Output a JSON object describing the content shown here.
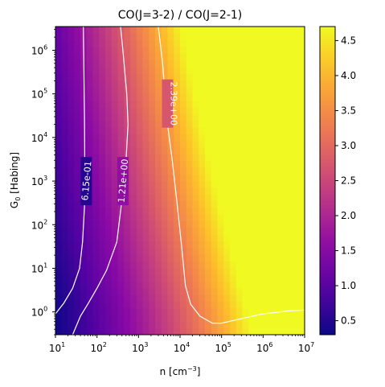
{
  "chart_data": {
    "type": "heatmap",
    "title": "CO(J=3-2) / CO(J=2-1)",
    "xlabel": "n [cm",
    "xlabel_sup": "−3",
    "xlabel_end": "]",
    "ylabel": "G",
    "ylabel_sub": "0",
    "ylabel_end": " [Habing]",
    "x_scale": "log",
    "y_scale": "log",
    "xlim": [
      10,
      10000000
    ],
    "ylim": [
      0.3,
      3500000
    ],
    "colormap": "plasma",
    "color_range": [
      0.3,
      4.7
    ],
    "x_ticks": [
      {
        "value": 10,
        "base": "10",
        "exp": "1"
      },
      {
        "value": 100,
        "base": "10",
        "exp": "2"
      },
      {
        "value": 1000,
        "base": "10",
        "exp": "3"
      },
      {
        "value": 10000,
        "base": "10",
        "exp": "4"
      },
      {
        "value": 100000,
        "base": "10",
        "exp": "5"
      },
      {
        "value": 1000000,
        "base": "10",
        "exp": "6"
      },
      {
        "value": 10000000,
        "base": "10",
        "exp": "7"
      }
    ],
    "y_ticks": [
      {
        "value": 1,
        "base": "10",
        "exp": "0"
      },
      {
        "value": 10,
        "base": "10",
        "exp": "1"
      },
      {
        "value": 100,
        "base": "10",
        "exp": "2"
      },
      {
        "value": 1000,
        "base": "10",
        "exp": "3"
      },
      {
        "value": 10000,
        "base": "10",
        "exp": "4"
      },
      {
        "value": 100000,
        "base": "10",
        "exp": "5"
      },
      {
        "value": 1000000,
        "base": "10",
        "exp": "6"
      }
    ],
    "colorbar_ticks": [
      {
        "value": 0.5,
        "label": "0.5"
      },
      {
        "value": 1.0,
        "label": "1.0"
      },
      {
        "value": 1.5,
        "label": "1.5"
      },
      {
        "value": 2.0,
        "label": "2.0"
      },
      {
        "value": 2.5,
        "label": "2.5"
      },
      {
        "value": 3.0,
        "label": "3.0"
      },
      {
        "value": 3.5,
        "label": "3.5"
      },
      {
        "value": 4.0,
        "label": "4.0"
      },
      {
        "value": 4.5,
        "label": "4.5"
      }
    ],
    "contours": [
      {
        "label": "6.15e-01",
        "label_at": [
          55,
          1000
        ],
        "points": [
          [
            10,
            0.9
          ],
          [
            16,
            1.6
          ],
          [
            26,
            3.5
          ],
          [
            38,
            10
          ],
          [
            45,
            40
          ],
          [
            50,
            250
          ],
          [
            51,
            1000
          ],
          [
            50,
            30000
          ],
          [
            47,
            3500000
          ]
        ]
      },
      {
        "label": "1.21e+00",
        "label_at": [
          420,
          1000
        ],
        "points": [
          [
            26,
            0.3
          ],
          [
            40,
            0.8
          ],
          [
            60,
            1.5
          ],
          [
            100,
            3.5
          ],
          [
            170,
            9
          ],
          [
            300,
            40
          ],
          [
            380,
            250
          ],
          [
            500,
            3000
          ],
          [
            560,
            20000
          ],
          [
            520,
            100000
          ],
          [
            420,
            1000000
          ],
          [
            370,
            3500000
          ]
        ]
      },
      {
        "label": "2.39e+00",
        "label_at": [
          5000,
          60000
        ],
        "points": [
          [
            3000,
            3500000
          ],
          [
            3800,
            500000
          ],
          [
            5000,
            20000
          ],
          [
            6500,
            3000
          ],
          [
            8500,
            300
          ],
          [
            11000,
            30
          ],
          [
            13500,
            4
          ],
          [
            18000,
            1.5
          ],
          [
            30000,
            0.8
          ],
          [
            60000,
            0.55
          ],
          [
            100000,
            0.55
          ],
          [
            300000,
            0.7
          ],
          [
            1000000,
            0.9
          ],
          [
            4000000,
            1.05
          ],
          [
            10000000,
            1.1
          ]
        ]
      }
    ]
  }
}
